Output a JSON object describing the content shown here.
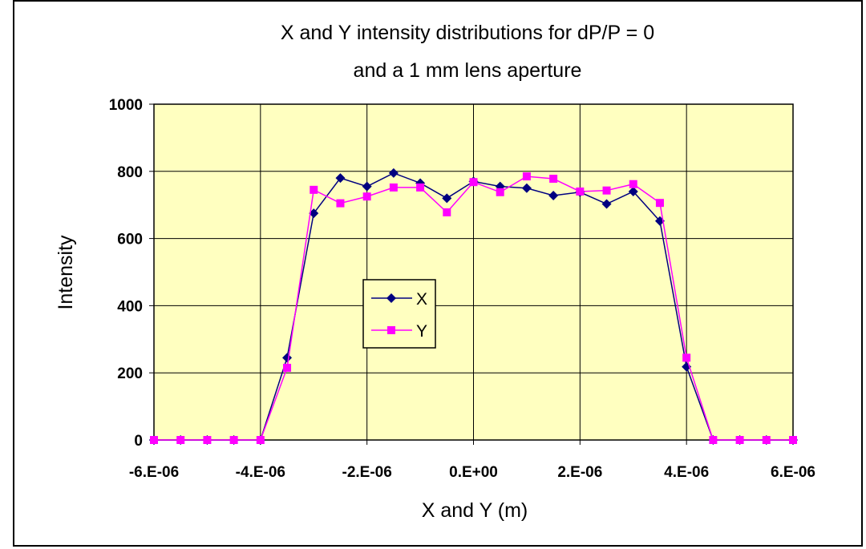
{
  "chart_data": {
    "type": "line",
    "title": [
      "X and Y intensity distributions for dP/P = 0",
      "and a 1 mm lens aperture"
    ],
    "xlabel": "X and Y (m)",
    "ylabel": "Intensity",
    "xlim": [
      -6e-06,
      6e-06
    ],
    "ylim": [
      0,
      1000
    ],
    "x_ticks": [
      -6e-06,
      -4e-06,
      -2e-06,
      0,
      2e-06,
      4e-06,
      6e-06
    ],
    "x_tick_labels": [
      "-6.E-06",
      "-4.E-06",
      "-2.E-06",
      "0.E+00",
      "2.E-06",
      "4.E-06",
      "6.E-06"
    ],
    "y_ticks": [
      0,
      200,
      400,
      600,
      800,
      1000
    ],
    "y_tick_labels": [
      "0",
      "200",
      "400",
      "600",
      "800",
      "1000"
    ],
    "grid": true,
    "plot_background": "#FFFFC0",
    "legend_placement": "inside-left-center",
    "x": [
      -6e-06,
      -5.5e-06,
      -5e-06,
      -4.5e-06,
      -4e-06,
      -3.5e-06,
      -3e-06,
      -2.5e-06,
      -2e-06,
      -1.5e-06,
      -1e-06,
      -5e-07,
      0,
      5e-07,
      1e-06,
      1.5e-06,
      2e-06,
      2.5e-06,
      3e-06,
      3.5e-06,
      4e-06,
      4.5e-06,
      5e-06,
      5.5e-06,
      6e-06
    ],
    "series": [
      {
        "name": "X",
        "color": "#000080",
        "marker": "diamond",
        "values": [
          0,
          0,
          0,
          0,
          0,
          245,
          675,
          780,
          755,
          795,
          765,
          720,
          770,
          755,
          750,
          728,
          738,
          703,
          740,
          652,
          218,
          0,
          0,
          0,
          0
        ]
      },
      {
        "name": "Y",
        "color": "#FF00FF",
        "marker": "square",
        "values": [
          0,
          0,
          0,
          0,
          0,
          215,
          745,
          705,
          725,
          752,
          752,
          678,
          768,
          738,
          785,
          778,
          740,
          743,
          762,
          706,
          245,
          0,
          0,
          0,
          0
        ]
      }
    ]
  }
}
